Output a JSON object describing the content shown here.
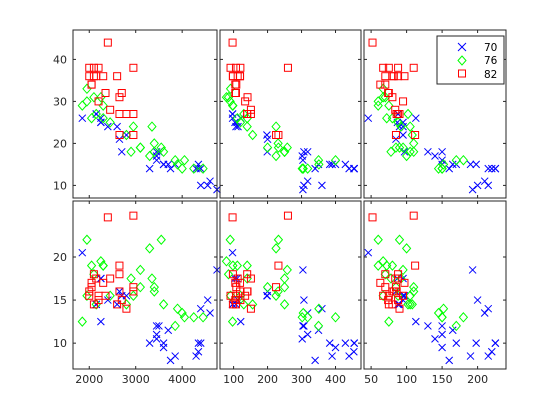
{
  "chart_data": {
    "type": "scatter",
    "title": "",
    "layout": "2 rows x 3 columns scatter-plot matrix",
    "legend": {
      "entries": [
        "70",
        "76",
        "82"
      ],
      "placement": "top-right of upper-right panel"
    },
    "series": [
      {
        "name": "70",
        "color": "#0000ff",
        "marker": "x-cross"
      },
      {
        "name": "76",
        "color": "#00ff00",
        "marker": "diamond"
      },
      {
        "name": "82",
        "color": "#ff0000",
        "marker": "square"
      }
    ],
    "x_axes": [
      {
        "label": "",
        "ticks": [
          2000,
          3000,
          4000
        ],
        "range": [
          1650,
          4750
        ]
      },
      {
        "label": "",
        "ticks": [
          100,
          200,
          300,
          400
        ],
        "range": [
          60,
          475
        ]
      },
      {
        "label": "",
        "ticks": [
          50,
          100,
          150,
          200
        ],
        "range": [
          40,
          240
        ]
      }
    ],
    "y_axes": [
      {
        "label": "",
        "ticks": [
          10,
          20,
          30,
          40
        ],
        "range": [
          7,
          47
        ]
      },
      {
        "label": "",
        "ticks": [
          10,
          15,
          20
        ],
        "range": [
          7,
          26.5
        ]
      }
    ],
    "records": {
      "70": [
        [
          3500,
          307,
          130,
          18,
          12.0
        ],
        [
          3700,
          350,
          165,
          15,
          11.5
        ],
        [
          3450,
          318,
          150,
          18,
          11.0
        ],
        [
          3450,
          304,
          150,
          16,
          12.0
        ],
        [
          3450,
          302,
          140,
          17,
          10.5
        ],
        [
          4350,
          429,
          198,
          15,
          10.0
        ],
        [
          4350,
          454,
          220,
          14,
          9.0
        ],
        [
          4300,
          440,
          215,
          14,
          8.5
        ],
        [
          4400,
          455,
          225,
          14,
          10.0
        ],
        [
          3850,
          390,
          190,
          15,
          8.5
        ],
        [
          3600,
          383,
          170,
          15,
          10.0
        ],
        [
          3750,
          340,
          160,
          14,
          8.0
        ],
        [
          3600,
          400,
          150,
          15,
          9.5
        ],
        [
          3300,
          455,
          225,
          14,
          10.0
        ],
        [
          2400,
          113,
          95,
          24,
          15.0
        ],
        [
          2800,
          198,
          95,
          22,
          15.5
        ],
        [
          2700,
          199,
          97,
          18,
          15.5
        ],
        [
          2650,
          200,
          85,
          21,
          16.0
        ],
        [
          2150,
          97,
          88,
          27,
          14.5
        ],
        [
          1850,
          97,
          46,
          26,
          20.5
        ],
        [
          2250,
          110,
          87,
          25,
          17.5
        ],
        [
          2600,
          107,
          90,
          24,
          14.5
        ],
        [
          2250,
          104,
          95,
          25,
          17.5
        ],
        [
          2250,
          121,
          113,
          26,
          12.5
        ],
        [
          4400,
          360,
          215,
          10,
          14.0
        ],
        [
          4550,
          307,
          200,
          10,
          15.0
        ],
        [
          4600,
          318,
          210,
          11,
          13.5
        ],
        [
          4750,
          304,
          193,
          9,
          18.5
        ],
        [
          2150,
          97,
          88,
          27,
          14.5
        ]
      ],
      "76": [
        [
          3850,
          350,
          170,
          16,
          12.0
        ],
        [
          4050,
          400,
          180,
          16,
          13.0
        ],
        [
          3900,
          351,
          152,
          15,
          14.0
        ],
        [
          4250,
          318,
          150,
          14,
          13.0
        ],
        [
          4000,
          305,
          145,
          14,
          13.5
        ],
        [
          4450,
          302,
          150,
          14,
          13.0
        ],
        [
          3600,
          250,
          105,
          18,
          14.5
        ],
        [
          3400,
          250,
          110,
          18,
          16.5
        ],
        [
          3100,
          258,
          95,
          19,
          18.5
        ],
        [
          3300,
          225,
          100,
          17,
          21.0
        ],
        [
          3550,
          232,
          90,
          19,
          22.0
        ],
        [
          3400,
          231,
          110,
          20,
          16.0
        ],
        [
          2300,
          98,
          60,
          29,
          19.0
        ],
        [
          2150,
          130,
          102,
          27,
          14.5
        ],
        [
          1950,
          91,
          67,
          33,
          15.5
        ],
        [
          2100,
          85,
          70,
          31,
          18.0
        ],
        [
          2050,
          111,
          80,
          26,
          19.0
        ],
        [
          1950,
          90,
          60,
          30,
          22.0
        ],
        [
          2300,
          140,
          72,
          26,
          19.0
        ],
        [
          2250,
          79,
          67,
          31,
          19.5
        ],
        [
          2900,
          250,
          78,
          18,
          17.5
        ],
        [
          3100,
          200,
          85,
          19,
          16.5
        ],
        [
          2950,
          225,
          105,
          24,
          15.5
        ],
        [
          2450,
          120,
          88,
          25,
          15.5
        ],
        [
          2800,
          156,
          108,
          22,
          14.5
        ],
        [
          1850,
          97,
          75,
          29,
          12.5
        ],
        [
          3350,
          140,
          92,
          24,
          17.5
        ]
      ],
      "82": [
        [
          2800,
          151,
          90,
          27,
          14.0
        ],
        [
          2950,
          140,
          86,
          27,
          16.0
        ],
        [
          2700,
          105,
          74,
          32,
          15.0
        ],
        [
          2600,
          98,
          80,
          36,
          14.5
        ],
        [
          2100,
          107,
          75,
          38,
          14.5
        ],
        [
          2050,
          108,
          70,
          34,
          16.5
        ],
        [
          2000,
          119,
          82,
          36,
          16.0
        ],
        [
          2200,
          120,
          88,
          38,
          15.0
        ],
        [
          2650,
          141,
          80,
          31,
          16.0
        ],
        [
          2950,
          260,
          110,
          38,
          24.8
        ],
        [
          2650,
          232,
          112,
          22,
          19.0
        ],
        [
          2950,
          225,
          85,
          22,
          16.5
        ],
        [
          2400,
          97,
          52,
          44,
          24.6
        ],
        [
          2150,
          112,
          88,
          36,
          17.5
        ],
        [
          2200,
          134,
          95,
          30,
          15.5
        ],
        [
          2300,
          119,
          97,
          36,
          17.0
        ],
        [
          2000,
          91,
          67,
          38,
          15.5
        ],
        [
          2100,
          98,
          70,
          36,
          18.0
        ],
        [
          2450,
          151,
          84,
          28,
          17.5
        ],
        [
          2350,
          107,
          75,
          32,
          15.5
        ],
        [
          2650,
          140,
          88,
          27,
          18.0
        ],
        [
          2050,
          105,
          63,
          34,
          17.0
        ]
      ]
    },
    "record_fields": [
      "x_axis_1",
      "x_axis_2",
      "x_axis_3",
      "y_axis_1",
      "y_axis_2"
    ]
  }
}
